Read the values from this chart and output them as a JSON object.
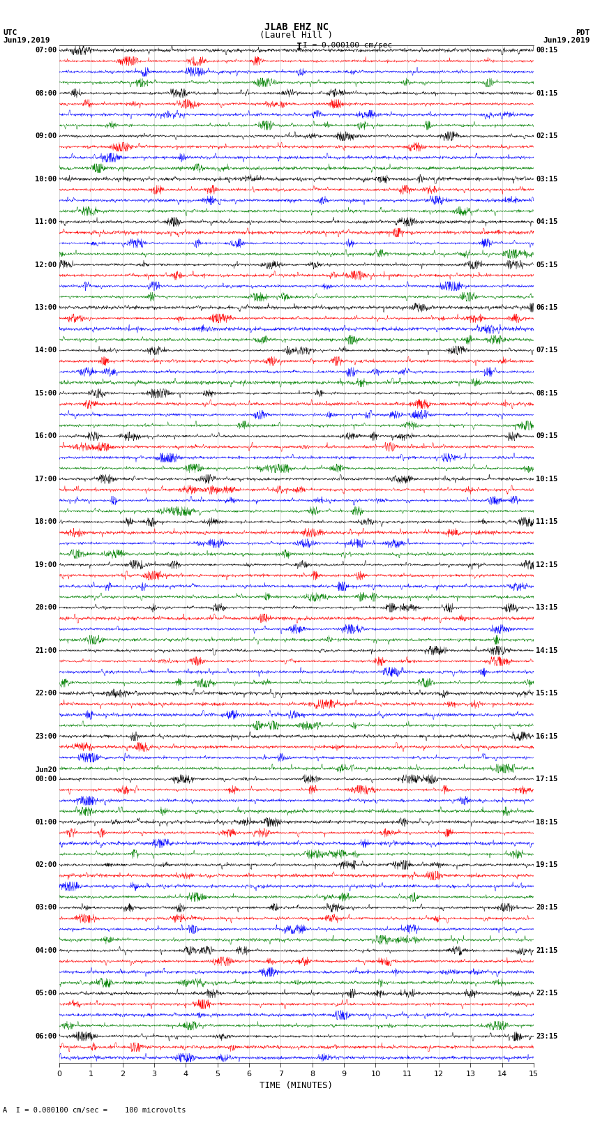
{
  "title_line1": "JLAB EHZ NC",
  "title_line2": "(Laurel Hill )",
  "scale_label": "I = 0.000100 cm/sec",
  "left_label": "UTC",
  "right_label": "PDT",
  "left_date": "Jun19,2019",
  "right_date": "Jun19,2019",
  "bottom_label": "TIME (MINUTES)",
  "bottom_note": "A  I = 0.000100 cm/sec =    100 microvolts",
  "utc_times": [
    "07:00",
    "",
    "",
    "",
    "08:00",
    "",
    "",
    "",
    "09:00",
    "",
    "",
    "",
    "10:00",
    "",
    "",
    "",
    "11:00",
    "",
    "",
    "",
    "12:00",
    "",
    "",
    "",
    "13:00",
    "",
    "",
    "",
    "14:00",
    "",
    "",
    "",
    "15:00",
    "",
    "",
    "",
    "16:00",
    "",
    "",
    "",
    "17:00",
    "",
    "",
    "",
    "18:00",
    "",
    "",
    "",
    "19:00",
    "",
    "",
    "",
    "20:00",
    "",
    "",
    "",
    "21:00",
    "",
    "",
    "",
    "22:00",
    "",
    "",
    "",
    "23:00",
    "",
    "",
    "",
    "Jun20\n00:00",
    "",
    "",
    "",
    "01:00",
    "",
    "",
    "",
    "02:00",
    "",
    "",
    "",
    "03:00",
    "",
    "",
    "",
    "04:00",
    "",
    "",
    "",
    "05:00",
    "",
    "",
    "",
    "06:00",
    "",
    ""
  ],
  "pdt_times": [
    "00:15",
    "",
    "",
    "",
    "01:15",
    "",
    "",
    "",
    "02:15",
    "",
    "",
    "",
    "03:15",
    "",
    "",
    "",
    "04:15",
    "",
    "",
    "",
    "05:15",
    "",
    "",
    "",
    "06:15",
    "",
    "",
    "",
    "07:15",
    "",
    "",
    "",
    "08:15",
    "",
    "",
    "",
    "09:15",
    "",
    "",
    "",
    "10:15",
    "",
    "",
    "",
    "11:15",
    "",
    "",
    "",
    "12:15",
    "",
    "",
    "",
    "13:15",
    "",
    "",
    "",
    "14:15",
    "",
    "",
    "",
    "15:15",
    "",
    "",
    "",
    "16:15",
    "",
    "",
    "",
    "17:15",
    "",
    "",
    "",
    "18:15",
    "",
    "",
    "",
    "19:15",
    "",
    "",
    "",
    "20:15",
    "",
    "",
    "",
    "21:15",
    "",
    "",
    "",
    "22:15",
    "",
    "",
    "",
    "23:15",
    "",
    ""
  ],
  "trace_colors": [
    "black",
    "red",
    "blue",
    "green"
  ],
  "n_points": 1800,
  "fig_width": 8.5,
  "fig_height": 16.13,
  "bg_color": "white",
  "trace_lw": 0.35,
  "trace_amplitude": 0.42,
  "noise_scale": 1.0,
  "spike_probability": 0.015,
  "spike_scale": 2.5
}
